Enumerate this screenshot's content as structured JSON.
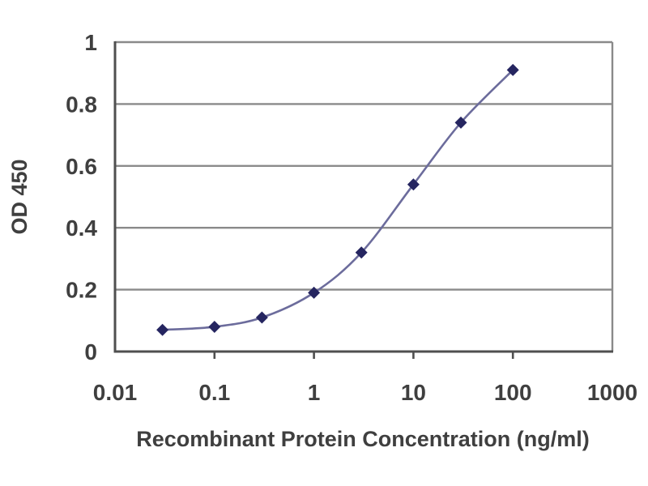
{
  "chart_data": {
    "type": "line",
    "title": "",
    "xlabel": "Recombinant Protein Concentration (ng/ml)",
    "ylabel": "OD 450",
    "x_scale": "log",
    "y_scale": "linear",
    "xlim": [
      0.01,
      1000
    ],
    "ylim": [
      0,
      1
    ],
    "x_ticks": [
      0.01,
      0.1,
      1,
      10,
      100,
      1000
    ],
    "x_tick_labels": [
      "0.01",
      "0.1",
      "1",
      "10",
      "100",
      "1000"
    ],
    "x_minor_tick_marks": [
      0.1,
      1,
      10,
      100
    ],
    "y_ticks": [
      0,
      0.2,
      0.4,
      0.6,
      0.8,
      1
    ],
    "y_tick_labels": [
      "0",
      "0.2",
      "0.4",
      "0.6",
      "0.8",
      "1"
    ],
    "grid": "horizontal",
    "legend": "none",
    "plot_border": "box",
    "series": [
      {
        "x": [
          0.03,
          0.1,
          0.3,
          1,
          3,
          10,
          30,
          100
        ],
        "y": [
          0.07,
          0.08,
          0.11,
          0.19,
          0.32,
          0.54,
          0.74,
          0.91
        ],
        "marker": "diamond",
        "line_color": "#6c6c9c",
        "marker_color": "#252560"
      }
    ],
    "colors": {
      "background": "#ffffff",
      "grid": "#8a8a8a",
      "axis": "#4f4f4f",
      "text": "#3f3f3f"
    }
  }
}
